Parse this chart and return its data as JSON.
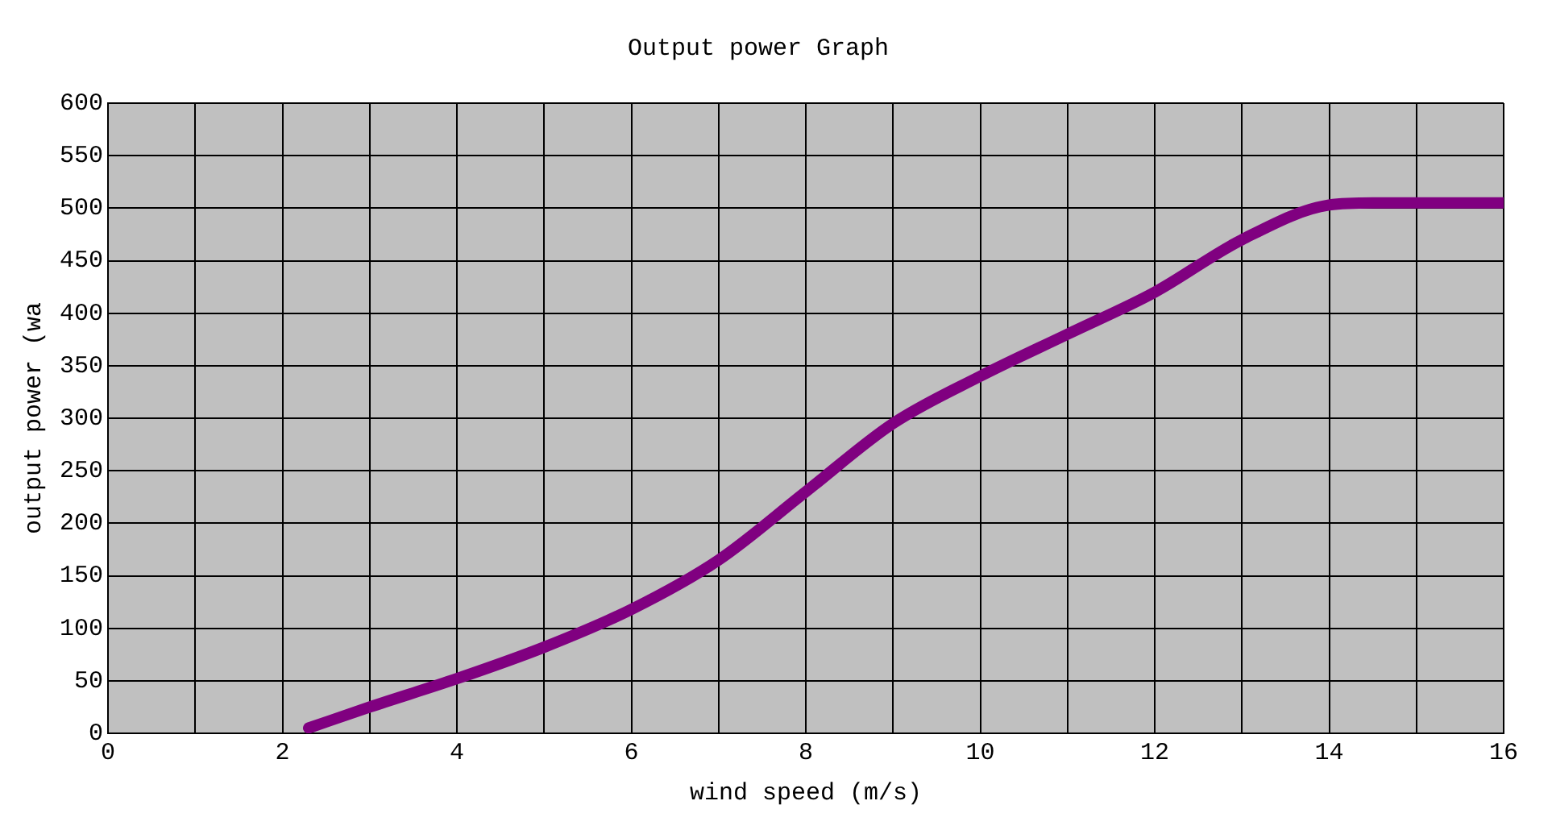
{
  "chart_data": {
    "type": "line",
    "title": "Output power Graph",
    "xlabel": "wind speed (m/s)",
    "ylabel": "output power (wa",
    "x": [
      2.3,
      3,
      4,
      5,
      6,
      7,
      8,
      9,
      10,
      11,
      12,
      13,
      14,
      14.5,
      16
    ],
    "series": [
      {
        "color": "#800080",
        "values": [
          5,
          25,
          52,
          82,
          118,
          165,
          230,
          295,
          340,
          380,
          420,
          470,
          503,
          505,
          505
        ]
      }
    ],
    "xlim": [
      0,
      16
    ],
    "xticks": [
      0,
      {
        "value": 1,
        "label": null
      },
      2,
      {
        "value": 3,
        "label": null
      },
      4,
      {
        "value": 5,
        "label": null
      },
      6,
      {
        "value": 7,
        "label": null
      },
      8,
      {
        "value": 9,
        "label": null
      },
      10,
      {
        "value": 11,
        "label": null
      },
      12,
      {
        "value": 13,
        "label": null
      },
      14,
      {
        "value": 15,
        "label": null
      },
      16
    ],
    "ylim": [
      0,
      600
    ],
    "yticks": [
      0,
      50,
      100,
      150,
      200,
      250,
      300,
      350,
      400,
      450,
      500,
      550,
      600
    ],
    "grid": true,
    "legend": false,
    "marker": "none",
    "line_style": "solid"
  }
}
